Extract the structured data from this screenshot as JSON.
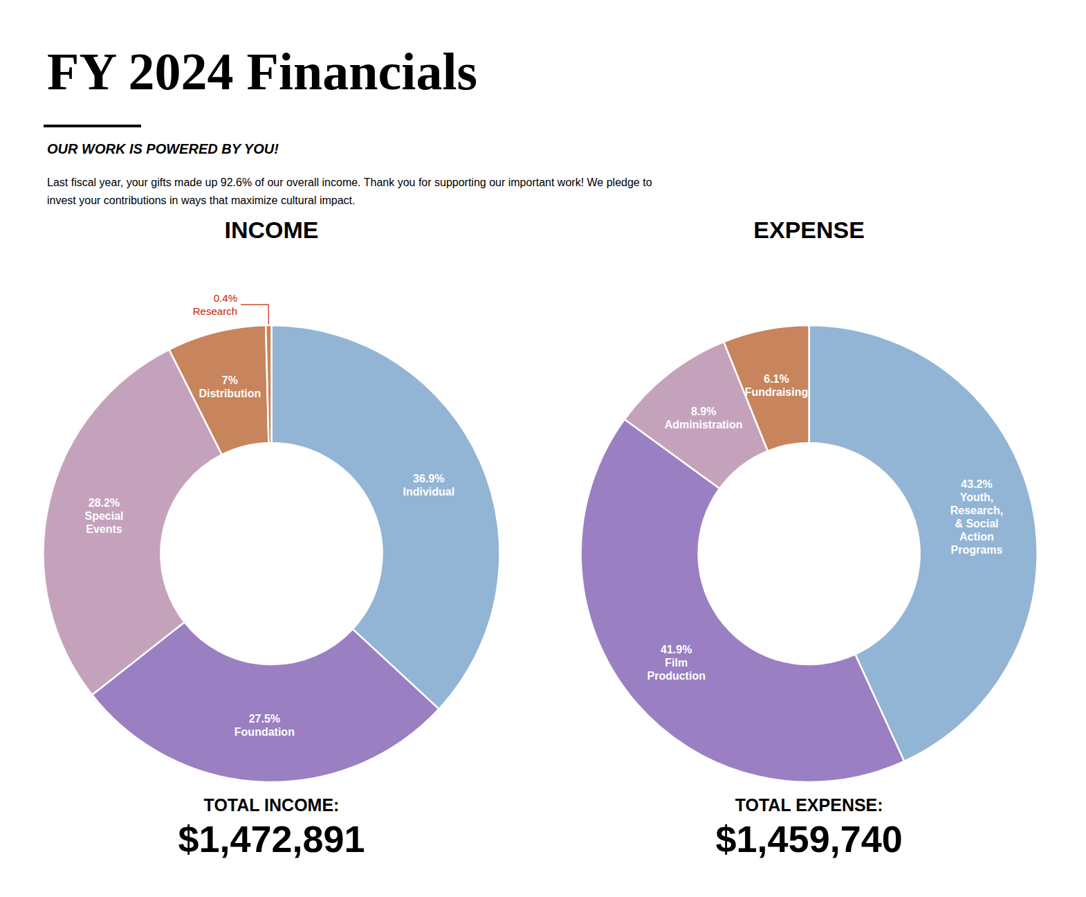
{
  "title": "FY 2024 Financials",
  "subtitle": "OUR WORK IS POWERED BY YOU!",
  "annotations": [
    {
      "text": "Last fiscal year, your gifts made up 92.6% of our overall income. Thank you for supporting our important work! We pledge to\ninvest your contributions in ways that maximize cultural impact."
    }
  ],
  "chart_data": [
    {
      "type": "pie",
      "title": "INCOME",
      "categories": [
        "Individual",
        "Foundation",
        "Special\nEvents",
        "Distribution",
        "Research"
      ],
      "values": [
        36.9,
        27.5,
        28.2,
        7,
        0.4
      ],
      "value_labels": [
        "36.9%",
        "27.5%",
        "28.2%",
        "7%",
        null
      ],
      "colors": [
        "#93b5d5",
        "#9a7fc2",
        "#c5a2bc",
        "#c8845c",
        "#c8845c"
      ],
      "data_labels": true,
      "annotations": [
        {
          "text": "0.4%\nResearch",
          "category": "Research",
          "color": "#cc2200"
        },
        {
          "text": "TOTAL INCOME:"
        },
        {
          "text": "$1,472,891"
        }
      ]
    },
    {
      "type": "pie",
      "title": "EXPENSE",
      "categories": [
        "Youth,\nResearch,\n& Social\nAction\nPrograms",
        "Film\nProduction",
        "Administration",
        "Fundraising"
      ],
      "values": [
        43.2,
        41.9,
        8.9,
        6.1
      ],
      "value_labels": [
        "43.2%",
        "41.9%",
        "8.9%",
        "6.1%"
      ],
      "colors": [
        "#93b5d5",
        "#9a7fc2",
        "#c5a2bc",
        "#c8845c"
      ],
      "data_labels": true,
      "annotations": [
        {
          "text": "TOTAL EXPENSE:"
        },
        {
          "text": "$1,459,740"
        }
      ]
    }
  ]
}
